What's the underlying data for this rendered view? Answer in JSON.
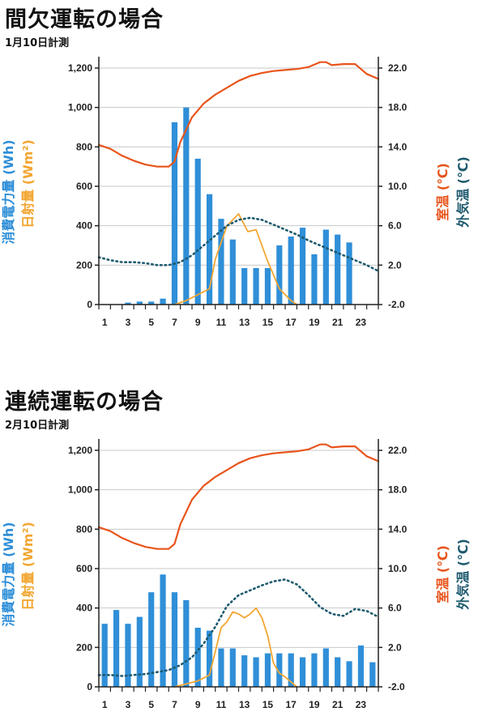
{
  "colors": {
    "energy": "#2f8fd8",
    "solar": "#f2a631",
    "room": "#e8541b",
    "outside": "#1d5a6e",
    "grid": "#c8c8c8",
    "axis": "#222222"
  },
  "chart_data": [
    {
      "type": "bar",
      "title": "間欠運転の場合",
      "subtitle": "1月10日計測",
      "left_axis_label_1": "消費電力量 (Wh)",
      "left_axis_label_2": "日射量 (Wm²)",
      "right_axis_label_1": "室温 (℃)",
      "right_axis_label_2": "外気温 (℃)",
      "x_ticks": [
        "1",
        "3",
        "5",
        "7",
        "9",
        "11",
        "13",
        "15",
        "17",
        "19",
        "21",
        "23"
      ],
      "left_ticks": [
        "0",
        "200",
        "400",
        "600",
        "800",
        "1,000",
        "1,200"
      ],
      "right_ticks": [
        "-2.0",
        "2.0",
        "6.0",
        "10.0",
        "14.0",
        "18.0",
        "22.0"
      ],
      "ylim_left": [
        0,
        1200
      ],
      "ylim_right": [
        -2,
        22
      ],
      "grid": true,
      "series": [
        {
          "name": "消費電力量",
          "kind": "bar",
          "axis": "left",
          "x": [
            3,
            4,
            5,
            6,
            7,
            8,
            9,
            10,
            11,
            12,
            13,
            14,
            15,
            16,
            17,
            18,
            19,
            20,
            21,
            22
          ],
          "values": [
            10,
            15,
            15,
            30,
            925,
            1000,
            740,
            560,
            435,
            330,
            185,
            185,
            185,
            300,
            345,
            390,
            255,
            380,
            355,
            315
          ]
        },
        {
          "name": "日射量",
          "kind": "line",
          "axis": "left",
          "x": [
            6.5,
            7.5,
            8.5,
            9.5,
            10,
            11,
            12,
            12.8,
            13.5,
            14.5,
            15.5,
            16.5,
            17
          ],
          "values": [
            0,
            20,
            50,
            80,
            230,
            400,
            460,
            370,
            380,
            220,
            80,
            20,
            0
          ]
        },
        {
          "name": "室温",
          "kind": "line",
          "axis": "right",
          "x": [
            0,
            1,
            2,
            3,
            4,
            5,
            6,
            6.5,
            7,
            8,
            9,
            10,
            11,
            12,
            13,
            14,
            15,
            16,
            17,
            18,
            19,
            19.5,
            20,
            21,
            22,
            23,
            24
          ],
          "values": [
            14.2,
            13.8,
            13.1,
            12.6,
            12.2,
            12.0,
            12.0,
            12.5,
            14.5,
            17.0,
            18.4,
            19.3,
            20.0,
            20.7,
            21.2,
            21.5,
            21.7,
            21.8,
            21.9,
            22.1,
            22.6,
            22.6,
            22.3,
            22.4,
            22.4,
            21.4,
            20.9
          ]
        },
        {
          "name": "外気温",
          "kind": "line",
          "axis": "right",
          "x": [
            0,
            1,
            2,
            3,
            4,
            5,
            6,
            7,
            8,
            9,
            10,
            11,
            12,
            13,
            14,
            15,
            16,
            17,
            18,
            19,
            20,
            21,
            22,
            23,
            24
          ],
          "values": [
            2.8,
            2.5,
            2.3,
            2.3,
            2.2,
            2.0,
            2.0,
            2.3,
            3.0,
            4.0,
            5.0,
            6.0,
            6.6,
            6.8,
            6.6,
            6.1,
            5.6,
            5.1,
            4.5,
            4.0,
            3.5,
            3.0,
            2.5,
            2.0,
            1.4
          ]
        }
      ]
    },
    {
      "type": "bar",
      "title": "連続運転の場合",
      "subtitle": "2月10日計測",
      "left_axis_label_1": "消費電力量 (Wh)",
      "left_axis_label_2": "日射量 (Wm²)",
      "right_axis_label_1": "室温 (℃)",
      "right_axis_label_2": "外気温 (℃)",
      "x_ticks": [
        "1",
        "3",
        "5",
        "7",
        "9",
        "11",
        "13",
        "15",
        "17",
        "19",
        "21",
        "23"
      ],
      "left_ticks": [
        "0",
        "200",
        "400",
        "600",
        "800",
        "1,000",
        "1,200"
      ],
      "right_ticks": [
        "-2.0",
        "2.0",
        "6.0",
        "10.0",
        "14.0",
        "18.0",
        "22.0"
      ],
      "ylim_left": [
        0,
        1200
      ],
      "ylim_right": [
        -2,
        22
      ],
      "grid": true,
      "series": [
        {
          "name": "消費電力量",
          "kind": "bar",
          "axis": "left",
          "x": [
            1,
            2,
            3,
            4,
            5,
            6,
            7,
            8,
            9,
            10,
            11,
            12,
            13,
            14,
            15,
            16,
            17,
            18,
            19,
            20,
            21,
            22,
            23,
            24
          ],
          "values": [
            320,
            390,
            320,
            355,
            480,
            570,
            480,
            440,
            300,
            285,
            195,
            195,
            160,
            150,
            170,
            170,
            170,
            150,
            170,
            195,
            150,
            130,
            210,
            125
          ]
        },
        {
          "name": "日射量",
          "kind": "line",
          "axis": "left",
          "x": [
            6.5,
            7.5,
            8.5,
            9.5,
            10,
            10.5,
            11,
            11.5,
            12,
            12.5,
            13,
            13.5,
            14,
            14.5,
            15,
            15.5,
            16,
            17
          ],
          "values": [
            0,
            15,
            30,
            60,
            180,
            300,
            330,
            380,
            370,
            350,
            370,
            400,
            350,
            260,
            120,
            70,
            50,
            0
          ]
        },
        {
          "name": "室温",
          "kind": "line",
          "axis": "right",
          "x": [
            0,
            1,
            2,
            3,
            4,
            5,
            6,
            6.5,
            7,
            8,
            9,
            10,
            11,
            12,
            13,
            14,
            15,
            16,
            17,
            18,
            19,
            19.5,
            20,
            21,
            22,
            23,
            24
          ],
          "values": [
            14.2,
            13.8,
            13.1,
            12.6,
            12.2,
            12.0,
            12.0,
            12.5,
            14.5,
            17.0,
            18.4,
            19.3,
            20.0,
            20.7,
            21.2,
            21.5,
            21.7,
            21.8,
            21.9,
            22.1,
            22.6,
            22.6,
            22.3,
            22.4,
            22.4,
            21.4,
            20.9
          ]
        },
        {
          "name": "外気温",
          "kind": "line",
          "axis": "right",
          "x": [
            0,
            1,
            2,
            3,
            4,
            5,
            6,
            7,
            8,
            9,
            10,
            11,
            12,
            13,
            14,
            15,
            16,
            17,
            18,
            19,
            20,
            21,
            22,
            23,
            24
          ],
          "values": [
            -0.8,
            -0.8,
            -0.9,
            -0.8,
            -0.7,
            -0.5,
            -0.3,
            0.2,
            1.0,
            2.4,
            4.1,
            6.2,
            7.3,
            7.8,
            8.3,
            8.7,
            8.9,
            8.4,
            7.3,
            6.1,
            5.4,
            5.2,
            5.9,
            5.7,
            5.1
          ]
        }
      ]
    }
  ]
}
